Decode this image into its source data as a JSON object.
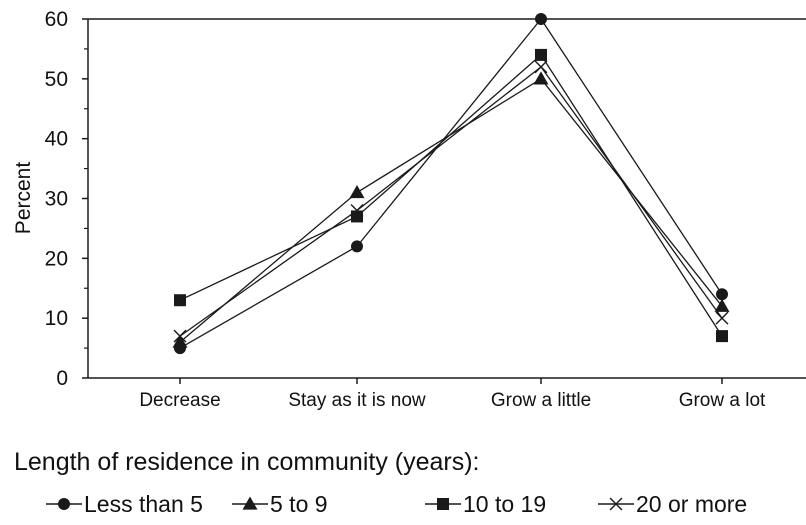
{
  "chart_data": {
    "type": "line",
    "title": "",
    "xlabel": "",
    "ylabel": "Percent",
    "ylim": [
      0,
      60
    ],
    "yticks": [
      0,
      10,
      20,
      30,
      40,
      50,
      60
    ],
    "categories": [
      "Decrease",
      "Stay as it is now",
      "Grow a little",
      "Grow a lot"
    ],
    "grid": false,
    "legend": {
      "title": "Length of residence in community (years):",
      "placement": "bottom"
    },
    "series": [
      {
        "name": "Less than 5",
        "marker": "circle",
        "values": [
          5,
          22,
          60,
          14
        ]
      },
      {
        "name": "5 to 9",
        "marker": "triangle",
        "values": [
          6,
          31,
          50,
          12
        ]
      },
      {
        "name": "10 to 19",
        "marker": "square",
        "values": [
          13,
          27,
          54,
          7
        ]
      },
      {
        "name": "20 or more",
        "marker": "x",
        "values": [
          7,
          28,
          52,
          10
        ]
      }
    ],
    "colors": {
      "line": "#1a1a1a",
      "axis": "#1a1a1a"
    }
  }
}
